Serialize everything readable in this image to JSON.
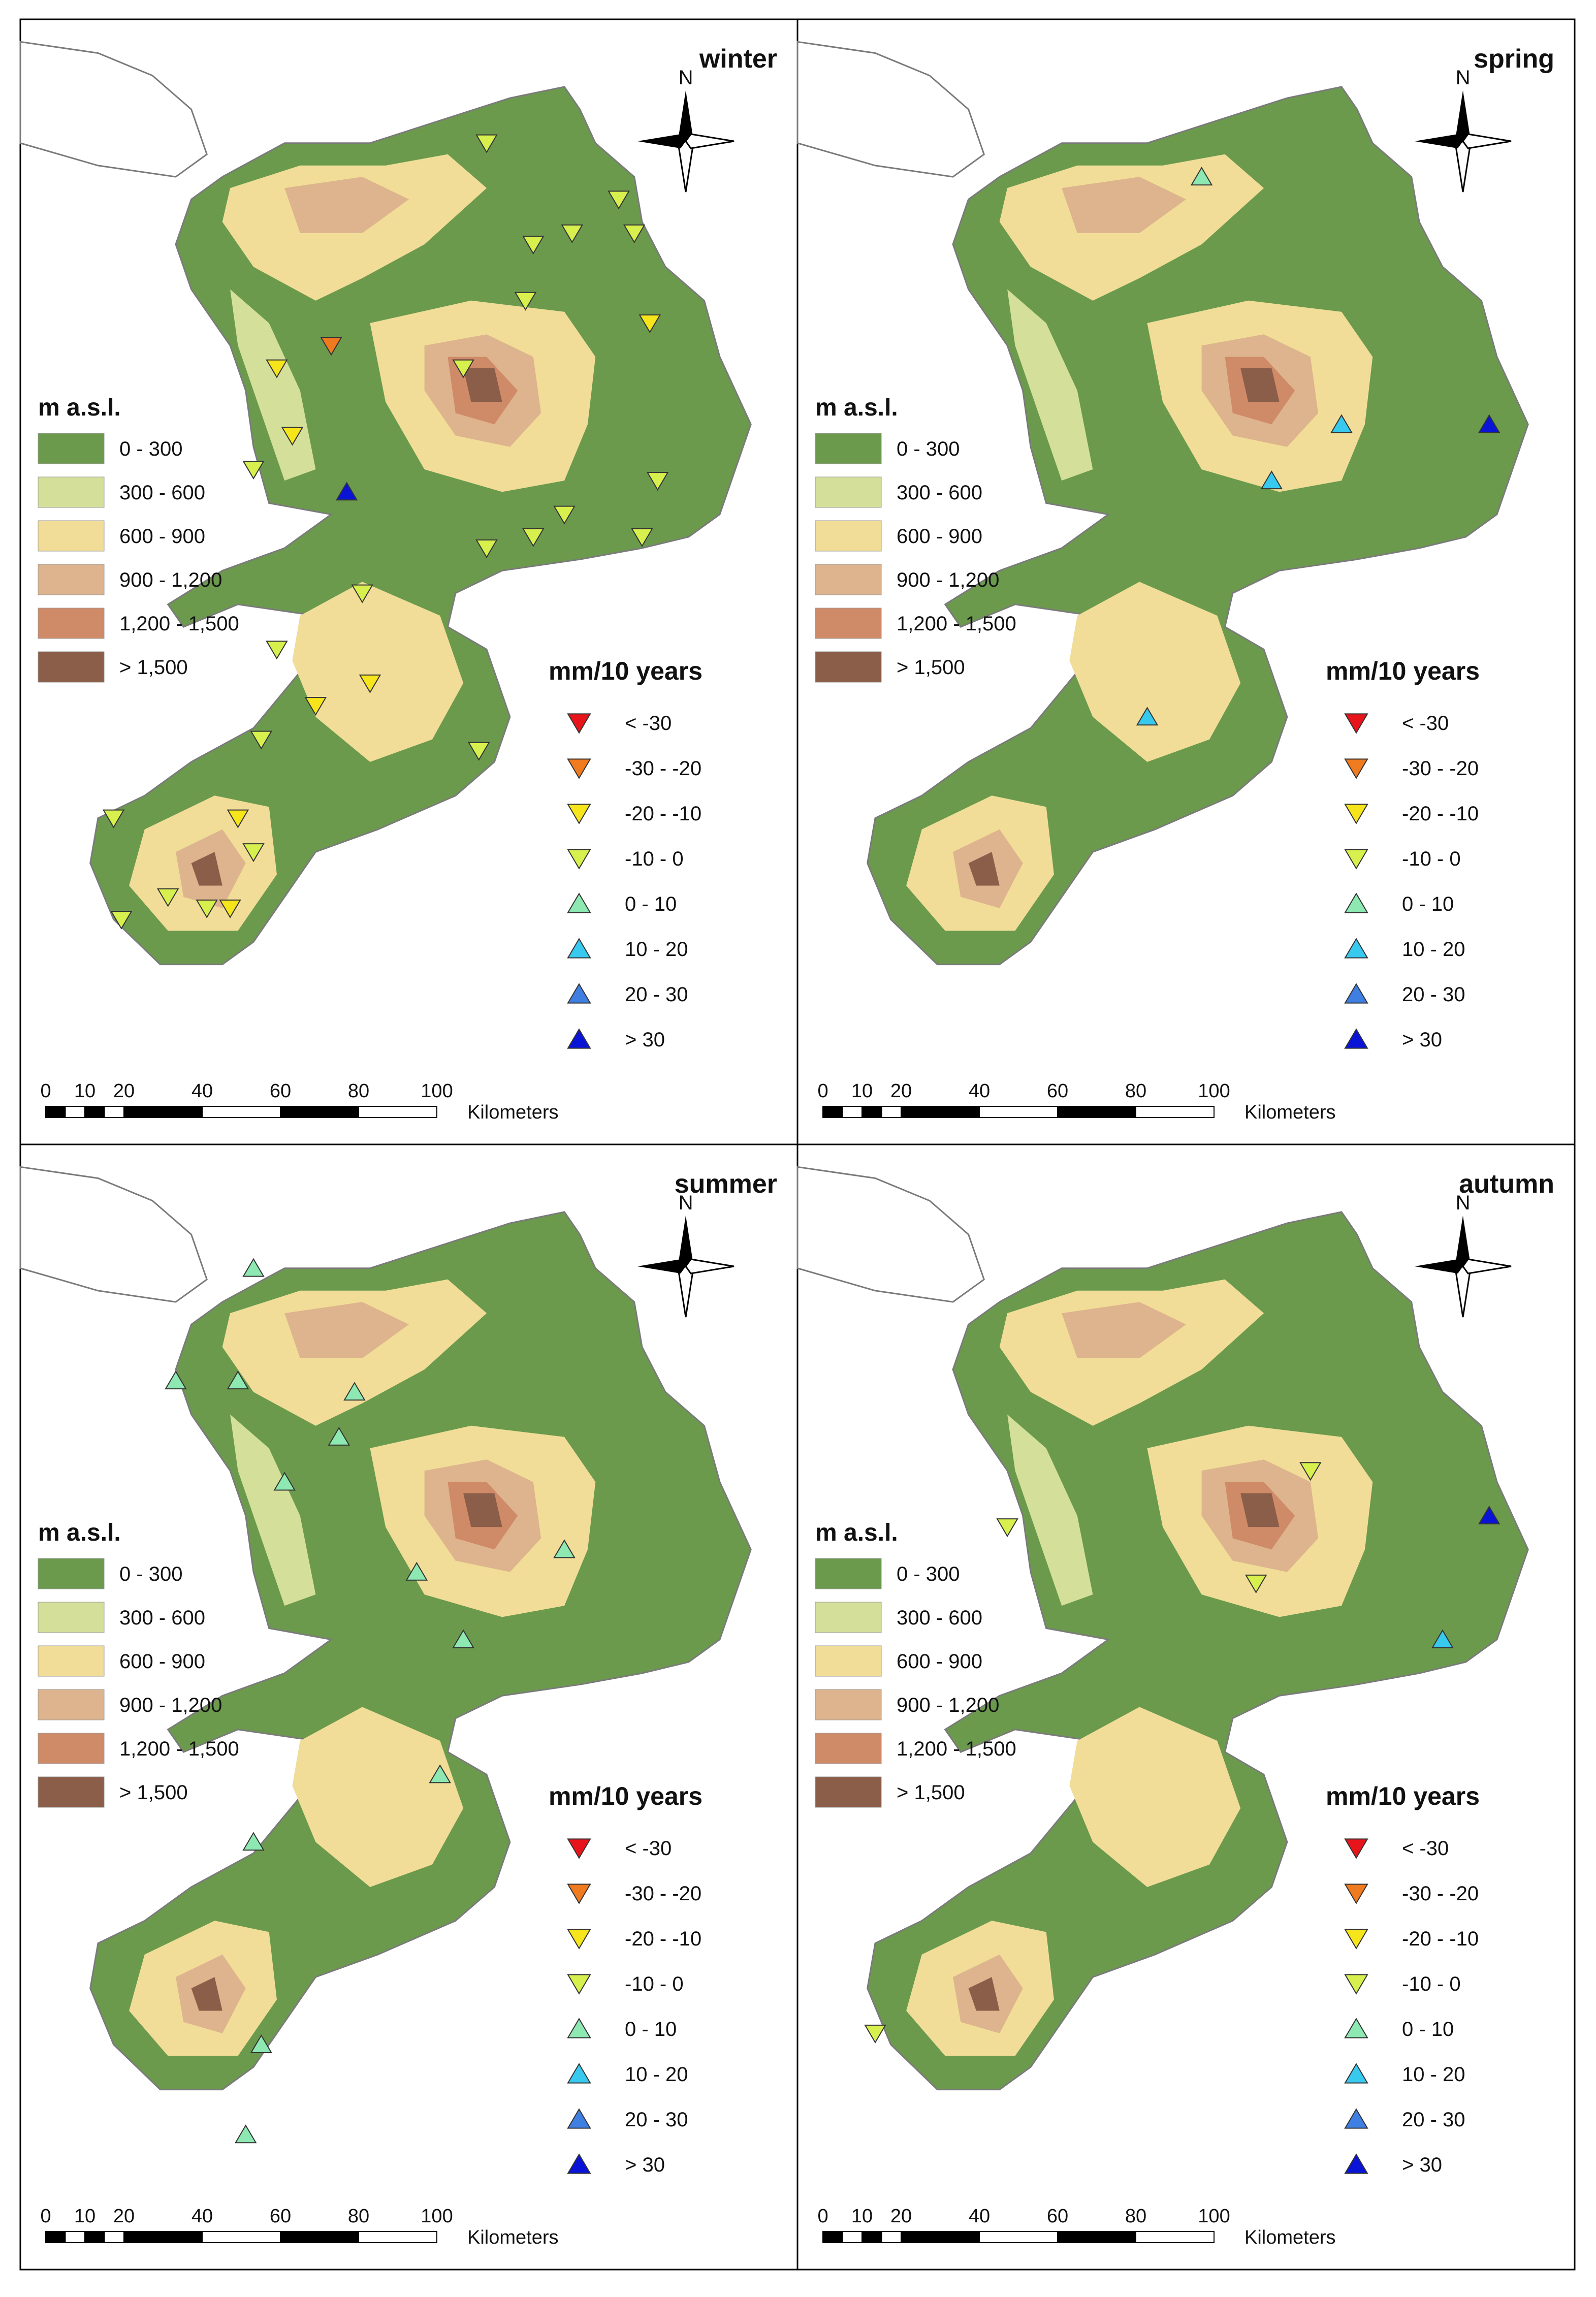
{
  "elevation_legend": {
    "title": "m a.s.l.",
    "classes": [
      {
        "label": "0 - 300",
        "color": "#6b9a4d"
      },
      {
        "label": "300 - 600",
        "color": "#d4e09a"
      },
      {
        "label": "600 - 900",
        "color": "#f1dd97"
      },
      {
        "label": "900 - 1,200",
        "color": "#ddb48d"
      },
      {
        "label": "1,200 - 1,500",
        "color": "#cf8a68"
      },
      {
        "label": "> 1,500",
        "color": "#8b5e49"
      }
    ]
  },
  "trend_legend": {
    "title": "mm/10 years",
    "classes": [
      {
        "label": "< -30",
        "color": "#e8141b",
        "dir": "down"
      },
      {
        "label": "-30 - -20",
        "color": "#f07a1e",
        "dir": "down"
      },
      {
        "label": "-20 - -10",
        "color": "#f7e51c",
        "dir": "down"
      },
      {
        "label": "-10 - 0",
        "color": "#d7f04e",
        "dir": "down"
      },
      {
        "label": "0 - 10",
        "color": "#8de8b2",
        "dir": "up"
      },
      {
        "label": "10 - 20",
        "color": "#38c9ef",
        "dir": "up"
      },
      {
        "label": "20 - 30",
        "color": "#3f7fe2",
        "dir": "up"
      },
      {
        "label": "> 30",
        "color": "#0a14d6",
        "dir": "up"
      }
    ]
  },
  "scale_bar": {
    "ticks": [
      "0",
      "10",
      "20",
      "40",
      "60",
      "80",
      "100"
    ],
    "unit": "Kilometers"
  },
  "north_arrow": {
    "label": "N",
    "icon": "compass-rose-icon"
  },
  "colors": {
    "coast_line": "#7a7a7a",
    "frame": "#000000"
  },
  "panels": [
    {
      "season": "winter",
      "stations": [
        [
          0.6,
          0.11,
          3
        ],
        [
          0.77,
          0.16,
          3
        ],
        [
          0.79,
          0.19,
          3
        ],
        [
          0.66,
          0.2,
          3
        ],
        [
          0.71,
          0.19,
          3
        ],
        [
          0.65,
          0.25,
          3
        ],
        [
          0.33,
          0.31,
          2
        ],
        [
          0.4,
          0.29,
          1
        ],
        [
          0.57,
          0.31,
          3
        ],
        [
          0.81,
          0.27,
          2
        ],
        [
          0.35,
          0.37,
          2
        ],
        [
          0.3,
          0.4,
          3
        ],
        [
          0.42,
          0.42,
          7
        ],
        [
          0.82,
          0.41,
          3
        ],
        [
          0.6,
          0.47,
          3
        ],
        [
          0.66,
          0.46,
          3
        ],
        [
          0.7,
          0.44,
          3
        ],
        [
          0.8,
          0.46,
          3
        ],
        [
          0.44,
          0.51,
          3
        ],
        [
          0.33,
          0.56,
          3
        ],
        [
          0.38,
          0.61,
          2
        ],
        [
          0.45,
          0.59,
          2
        ],
        [
          0.31,
          0.64,
          3
        ],
        [
          0.59,
          0.65,
          3
        ],
        [
          0.12,
          0.71,
          3
        ],
        [
          0.28,
          0.71,
          2
        ],
        [
          0.3,
          0.74,
          3
        ],
        [
          0.19,
          0.78,
          3
        ],
        [
          0.24,
          0.79,
          3
        ],
        [
          0.13,
          0.8,
          3
        ],
        [
          0.27,
          0.79,
          2
        ]
      ]
    },
    {
      "season": "spring",
      "stations": [
        [
          0.52,
          0.14,
          4
        ],
        [
          0.89,
          0.36,
          7
        ],
        [
          0.61,
          0.41,
          5
        ],
        [
          0.7,
          0.36,
          5
        ],
        [
          0.45,
          0.62,
          5
        ]
      ]
    },
    {
      "season": "summer",
      "stations": [
        [
          0.3,
          0.11,
          4
        ],
        [
          0.2,
          0.21,
          4
        ],
        [
          0.28,
          0.21,
          4
        ],
        [
          0.43,
          0.22,
          4
        ],
        [
          0.41,
          0.26,
          4
        ],
        [
          0.34,
          0.3,
          4
        ],
        [
          0.51,
          0.38,
          4
        ],
        [
          0.7,
          0.36,
          4
        ],
        [
          0.57,
          0.44,
          4
        ],
        [
          0.54,
          0.56,
          4
        ],
        [
          0.3,
          0.62,
          4
        ],
        [
          0.31,
          0.8,
          4
        ],
        [
          0.29,
          0.88,
          4
        ]
      ]
    },
    {
      "season": "autumn",
      "stations": [
        [
          0.66,
          0.29,
          3
        ],
        [
          0.27,
          0.34,
          3
        ],
        [
          0.59,
          0.39,
          3
        ],
        [
          0.89,
          0.33,
          7
        ],
        [
          0.83,
          0.44,
          5
        ],
        [
          0.1,
          0.79,
          3
        ]
      ]
    }
  ]
}
